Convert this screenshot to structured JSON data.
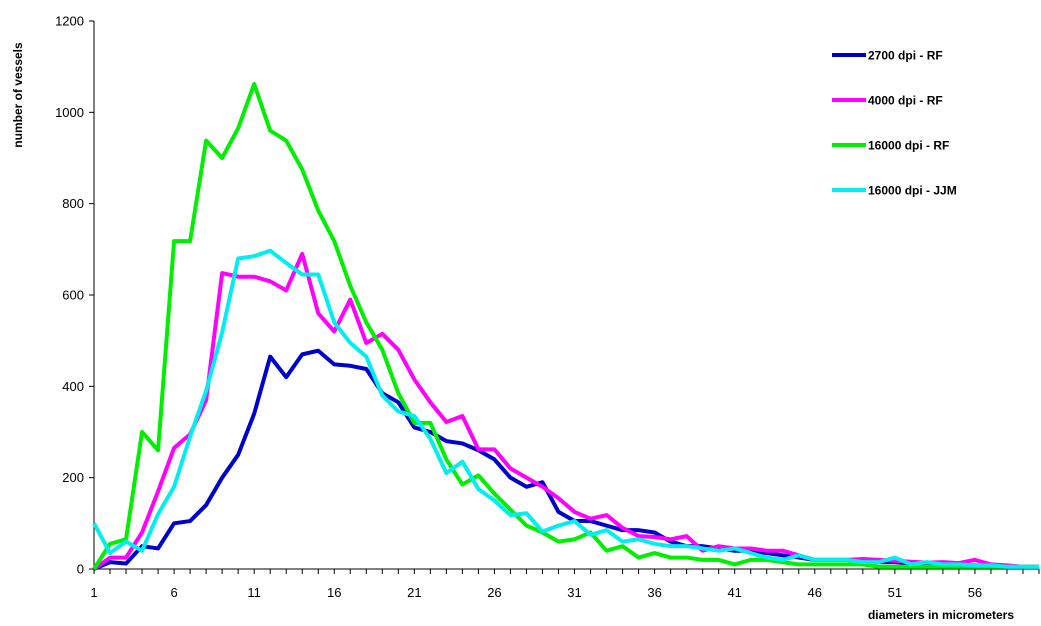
{
  "chart_data": {
    "type": "line",
    "title": "",
    "xlabel": "diameters in micrometers",
    "ylabel": "number of vessels",
    "xlim": [
      1,
      60
    ],
    "ylim": [
      0,
      1200
    ],
    "x_ticks": [
      1,
      6,
      11,
      16,
      21,
      26,
      31,
      36,
      41,
      46,
      51,
      56
    ],
    "y_ticks": [
      0,
      200,
      400,
      600,
      800,
      1000,
      1200
    ],
    "grid": false,
    "legend_position": "top-right",
    "x": [
      1,
      2,
      3,
      4,
      5,
      6,
      7,
      8,
      9,
      10,
      11,
      12,
      13,
      14,
      15,
      16,
      17,
      18,
      19,
      20,
      21,
      22,
      23,
      24,
      25,
      26,
      27,
      28,
      29,
      30,
      31,
      32,
      33,
      34,
      35,
      36,
      37,
      38,
      39,
      40,
      41,
      42,
      43,
      44,
      45,
      46,
      47,
      48,
      49,
      50,
      51,
      52,
      53,
      54,
      55,
      56,
      57,
      58,
      59,
      60
    ],
    "series": [
      {
        "name": "2700 dpi - RF",
        "color": "#0000cc",
        "values": [
          0,
          15,
          12,
          50,
          45,
          100,
          105,
          140,
          200,
          250,
          340,
          465,
          420,
          470,
          478,
          448,
          445,
          438,
          385,
          365,
          310,
          300,
          280,
          275,
          260,
          240,
          200,
          180,
          190,
          125,
          105,
          105,
          95,
          85,
          85,
          80,
          60,
          50,
          50,
          45,
          40,
          40,
          35,
          30,
          25,
          20,
          20,
          20,
          15,
          15,
          15,
          12,
          12,
          10,
          10,
          8,
          8,
          5,
          5,
          5
        ]
      },
      {
        "name": "4000 dpi - RF",
        "color": "#ff00ff",
        "values": [
          0,
          25,
          25,
          80,
          170,
          265,
          295,
          370,
          648,
          640,
          640,
          630,
          610,
          690,
          560,
          520,
          590,
          495,
          515,
          480,
          415,
          365,
          322,
          335,
          262,
          262,
          220,
          200,
          180,
          155,
          125,
          110,
          118,
          90,
          72,
          70,
          65,
          72,
          40,
          50,
          45,
          45,
          40,
          40,
          30,
          20,
          20,
          20,
          22,
          20,
          18,
          16,
          14,
          15,
          13,
          20,
          10,
          8,
          5,
          5
        ]
      },
      {
        "name": "16000 dpi - RF",
        "color": "#00ee00",
        "values": [
          0,
          55,
          65,
          300,
          260,
          718,
          718,
          938,
          900,
          965,
          1062,
          960,
          938,
          875,
          785,
          718,
          620,
          540,
          480,
          385,
          320,
          320,
          240,
          185,
          205,
          165,
          130,
          95,
          80,
          60,
          65,
          80,
          40,
          50,
          25,
          35,
          25,
          25,
          20,
          20,
          10,
          20,
          20,
          15,
          10,
          10,
          10,
          10,
          10,
          5,
          5,
          5,
          5,
          5,
          5,
          5,
          5,
          5,
          5,
          5
        ]
      },
      {
        "name": "16000 dpi - JJM",
        "color": "#00eeee",
        "values": [
          100,
          35,
          60,
          40,
          120,
          180,
          290,
          390,
          518,
          680,
          685,
          697,
          670,
          645,
          645,
          540,
          495,
          465,
          380,
          345,
          335,
          285,
          210,
          235,
          175,
          150,
          118,
          122,
          82,
          95,
          105,
          75,
          85,
          60,
          65,
          55,
          50,
          50,
          45,
          40,
          45,
          35,
          25,
          20,
          30,
          20,
          20,
          20,
          15,
          15,
          25,
          10,
          15,
          10,
          10,
          8,
          8,
          5,
          5,
          5
        ]
      }
    ]
  }
}
